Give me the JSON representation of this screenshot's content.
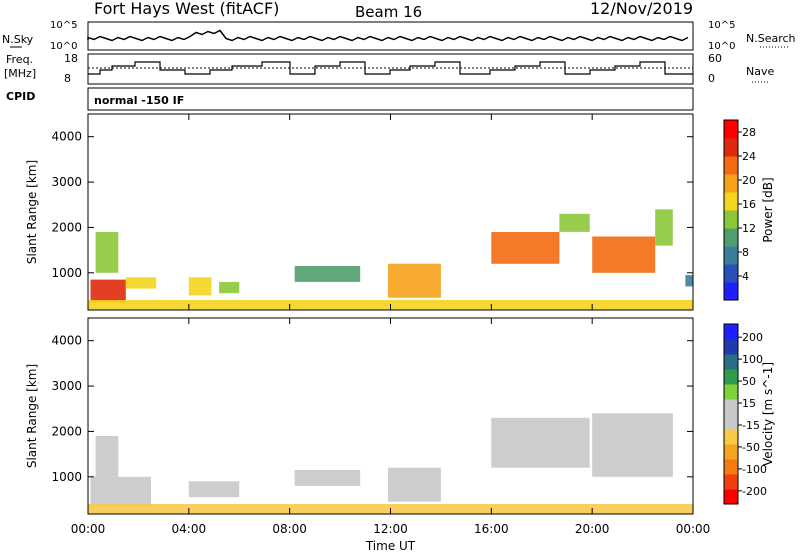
{
  "header": {
    "station": "Fort Hays West (fitACF)",
    "beam": "Beam 16",
    "date": "12/Nov/2019"
  },
  "status_panel": {
    "left_labels": [
      "N.Sky",
      "Freq.",
      "[MHz]",
      "CPID"
    ],
    "right_labels": [
      "N.Search",
      "Nave"
    ],
    "nsky_ticks": [
      "10^5",
      "10^0"
    ],
    "nsearch_ticks": [
      "10^5",
      "10^0"
    ],
    "freq_ticks": [
      "18",
      "8"
    ],
    "nave_ticks": [
      "60",
      "0"
    ],
    "cpid_text": "normal -150 IF"
  },
  "chart_data": [
    {
      "type": "heatmap",
      "title": "",
      "xlabel": "",
      "ylabel": "Slant Range [km]",
      "xlim": [
        0,
        24
      ],
      "ylim": [
        180,
        4500
      ],
      "y_ticks": [
        "1000",
        "2000",
        "3000",
        "4000"
      ],
      "colorbar": {
        "label": "Power [dB]",
        "ticks": [
          "4",
          "8",
          "12",
          "16",
          "20",
          "24",
          "28"
        ],
        "range": [
          0,
          30
        ],
        "colors": [
          "#1f1fff",
          "#2b4fb8",
          "#3a7f9a",
          "#4f9e6e",
          "#8cc63a",
          "#f5d41f",
          "#f5a21a",
          "#f26b12",
          "#e02a0c",
          "#ff0000"
        ]
      },
      "regions": [
        {
          "t0": 0.1,
          "t1": 1.5,
          "r0": 350,
          "r1": 850,
          "value": 24
        },
        {
          "t0": 0.3,
          "t1": 1.2,
          "r0": 1000,
          "r1": 1900,
          "value": 12
        },
        {
          "t0": 1.5,
          "t1": 2.7,
          "r0": 650,
          "r1": 900,
          "value": 16
        },
        {
          "t0": 4.0,
          "t1": 4.9,
          "r0": 500,
          "r1": 900,
          "value": 16
        },
        {
          "t0": 5.2,
          "t1": 6.0,
          "r0": 550,
          "r1": 800,
          "value": 14
        },
        {
          "t0": 8.2,
          "t1": 10.8,
          "r0": 800,
          "r1": 1150,
          "value": 10
        },
        {
          "t0": 11.9,
          "t1": 14.0,
          "r0": 450,
          "r1": 1200,
          "value": 18
        },
        {
          "t0": 16.0,
          "t1": 18.7,
          "r0": 1200,
          "r1": 1900,
          "value": 22
        },
        {
          "t0": 18.7,
          "t1": 19.9,
          "r0": 1900,
          "r1": 2300,
          "value": 12
        },
        {
          "t0": 20.0,
          "t1": 22.5,
          "r0": 1000,
          "r1": 1800,
          "value": 22
        },
        {
          "t0": 22.5,
          "t1": 23.2,
          "r0": 1600,
          "r1": 2400,
          "value": 13
        },
        {
          "t0": 23.7,
          "t1": 24.0,
          "r0": 700,
          "r1": 950,
          "value": 8
        },
        {
          "t0": 0.0,
          "t1": 24.0,
          "r0": 180,
          "r1": 400,
          "value": 15
        }
      ]
    },
    {
      "type": "heatmap",
      "title": "",
      "xlabel": "Time UT",
      "ylabel": "Slant Range [km]",
      "xlim": [
        0,
        24
      ],
      "ylim": [
        180,
        4500
      ],
      "x_ticks": [
        "00:00",
        "04:00",
        "08:00",
        "12:00",
        "16:00",
        "20:00",
        "00:00"
      ],
      "y_ticks": [
        "1000",
        "2000",
        "3000",
        "4000"
      ],
      "colorbar": {
        "label": "Velocity [m s^-1]",
        "ticks": [
          "200",
          "100",
          "50",
          "15",
          "-15",
          "-50",
          "-100",
          "-200"
        ],
        "range": [
          -250,
          250
        ],
        "colors": [
          "#ff0000",
          "#f04010",
          "#f47b12",
          "#f5a41f",
          "#f7c94a",
          "#c8c8c8",
          "#c8c8c8",
          "#7dd13a",
          "#2e9d4e",
          "#2a6f8a",
          "#1f3aaa",
          "#1f1fff"
        ]
      },
      "regions": [
        {
          "t0": 0.1,
          "t1": 2.5,
          "r0": 350,
          "r1": 1000,
          "value": 40
        },
        {
          "t0": 0.3,
          "t1": 1.2,
          "r0": 1000,
          "r1": 1900,
          "value": 0
        },
        {
          "t0": 4.0,
          "t1": 6.0,
          "r0": 550,
          "r1": 900,
          "value": -40
        },
        {
          "t0": 8.2,
          "t1": 10.8,
          "r0": 800,
          "r1": 1150,
          "value": -30
        },
        {
          "t0": 11.9,
          "t1": 14.0,
          "r0": 450,
          "r1": 1200,
          "value": -30
        },
        {
          "t0": 16.0,
          "t1": 19.9,
          "r0": 1200,
          "r1": 2300,
          "value": 0
        },
        {
          "t0": 20.0,
          "t1": 23.2,
          "r0": 1000,
          "r1": 2400,
          "value": 0
        },
        {
          "t0": 0.0,
          "t1": 24.0,
          "r0": 180,
          "r1": 400,
          "value": -60
        }
      ]
    }
  ]
}
